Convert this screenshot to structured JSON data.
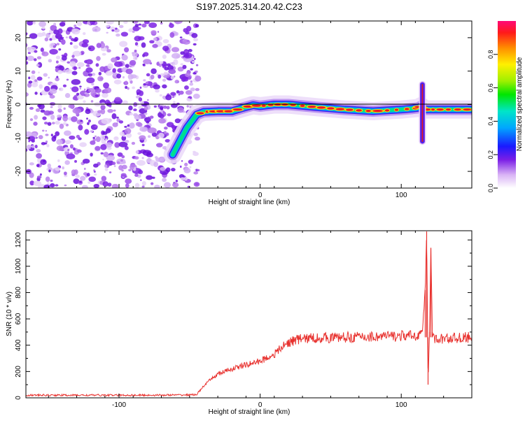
{
  "title": "S197.2025.314.20.42.C23",
  "spectrogram": {
    "type": "heatmap",
    "xlabel": "Height of straight line (km)",
    "ylabel": "Frequency (Hz)",
    "xlim": [
      -166,
      150
    ],
    "ylim": [
      -25,
      25
    ],
    "xticks": [
      -100,
      0,
      100
    ],
    "yticks": [
      20,
      10,
      0,
      -10,
      -20
    ],
    "noise_region_km": [
      -166,
      -50
    ],
    "ridge_x": [
      -62,
      -57,
      -52,
      -45,
      -40,
      -30,
      -20,
      -12,
      -5,
      0,
      10,
      20,
      40,
      60,
      80,
      100,
      108,
      112,
      114,
      117,
      120,
      130,
      150
    ],
    "ridge_y": [
      -15,
      -11,
      -7,
      -3,
      -2.2,
      -2,
      -2,
      -1,
      -0.2,
      -0.5,
      0,
      0,
      -0.8,
      -1.5,
      -2,
      -1.5,
      -1.2,
      -1,
      -0.5,
      -1.5,
      -1.5,
      -1.5,
      -1.5
    ],
    "spike_x_km": 115,
    "spike_y_range": [
      -11,
      6
    ],
    "colorbar": {
      "label": "Normalized spectral amplitude",
      "ticks": [
        "0.0",
        "0.2",
        "0.4",
        "0.6",
        "0.8"
      ],
      "range": [
        0,
        1
      ]
    }
  },
  "snr": {
    "type": "line",
    "xlabel": "Height of straight line (km)",
    "ylabel": "SNR (10 * v/v)",
    "xlim": [
      -166,
      150
    ],
    "ylim": [
      0,
      1270
    ],
    "xticks": [
      -100,
      0,
      100
    ],
    "yticks": [
      0,
      200,
      400,
      600,
      800,
      1000,
      1200
    ],
    "color": "#e8322f",
    "series_x": [
      -166,
      -120,
      -80,
      -50,
      -45,
      -40,
      -35,
      -30,
      -20,
      -10,
      0,
      10,
      15,
      20,
      25,
      30,
      40,
      60,
      80,
      100,
      110,
      115,
      117,
      118,
      119,
      120,
      121,
      122,
      124,
      130,
      150
    ],
    "series_y": [
      20,
      20,
      20,
      22,
      25,
      90,
      140,
      180,
      220,
      250,
      280,
      330,
      380,
      420,
      440,
      450,
      455,
      460,
      465,
      470,
      470,
      500,
      820,
      1265,
      100,
      500,
      1140,
      500,
      440,
      450,
      460
    ]
  }
}
